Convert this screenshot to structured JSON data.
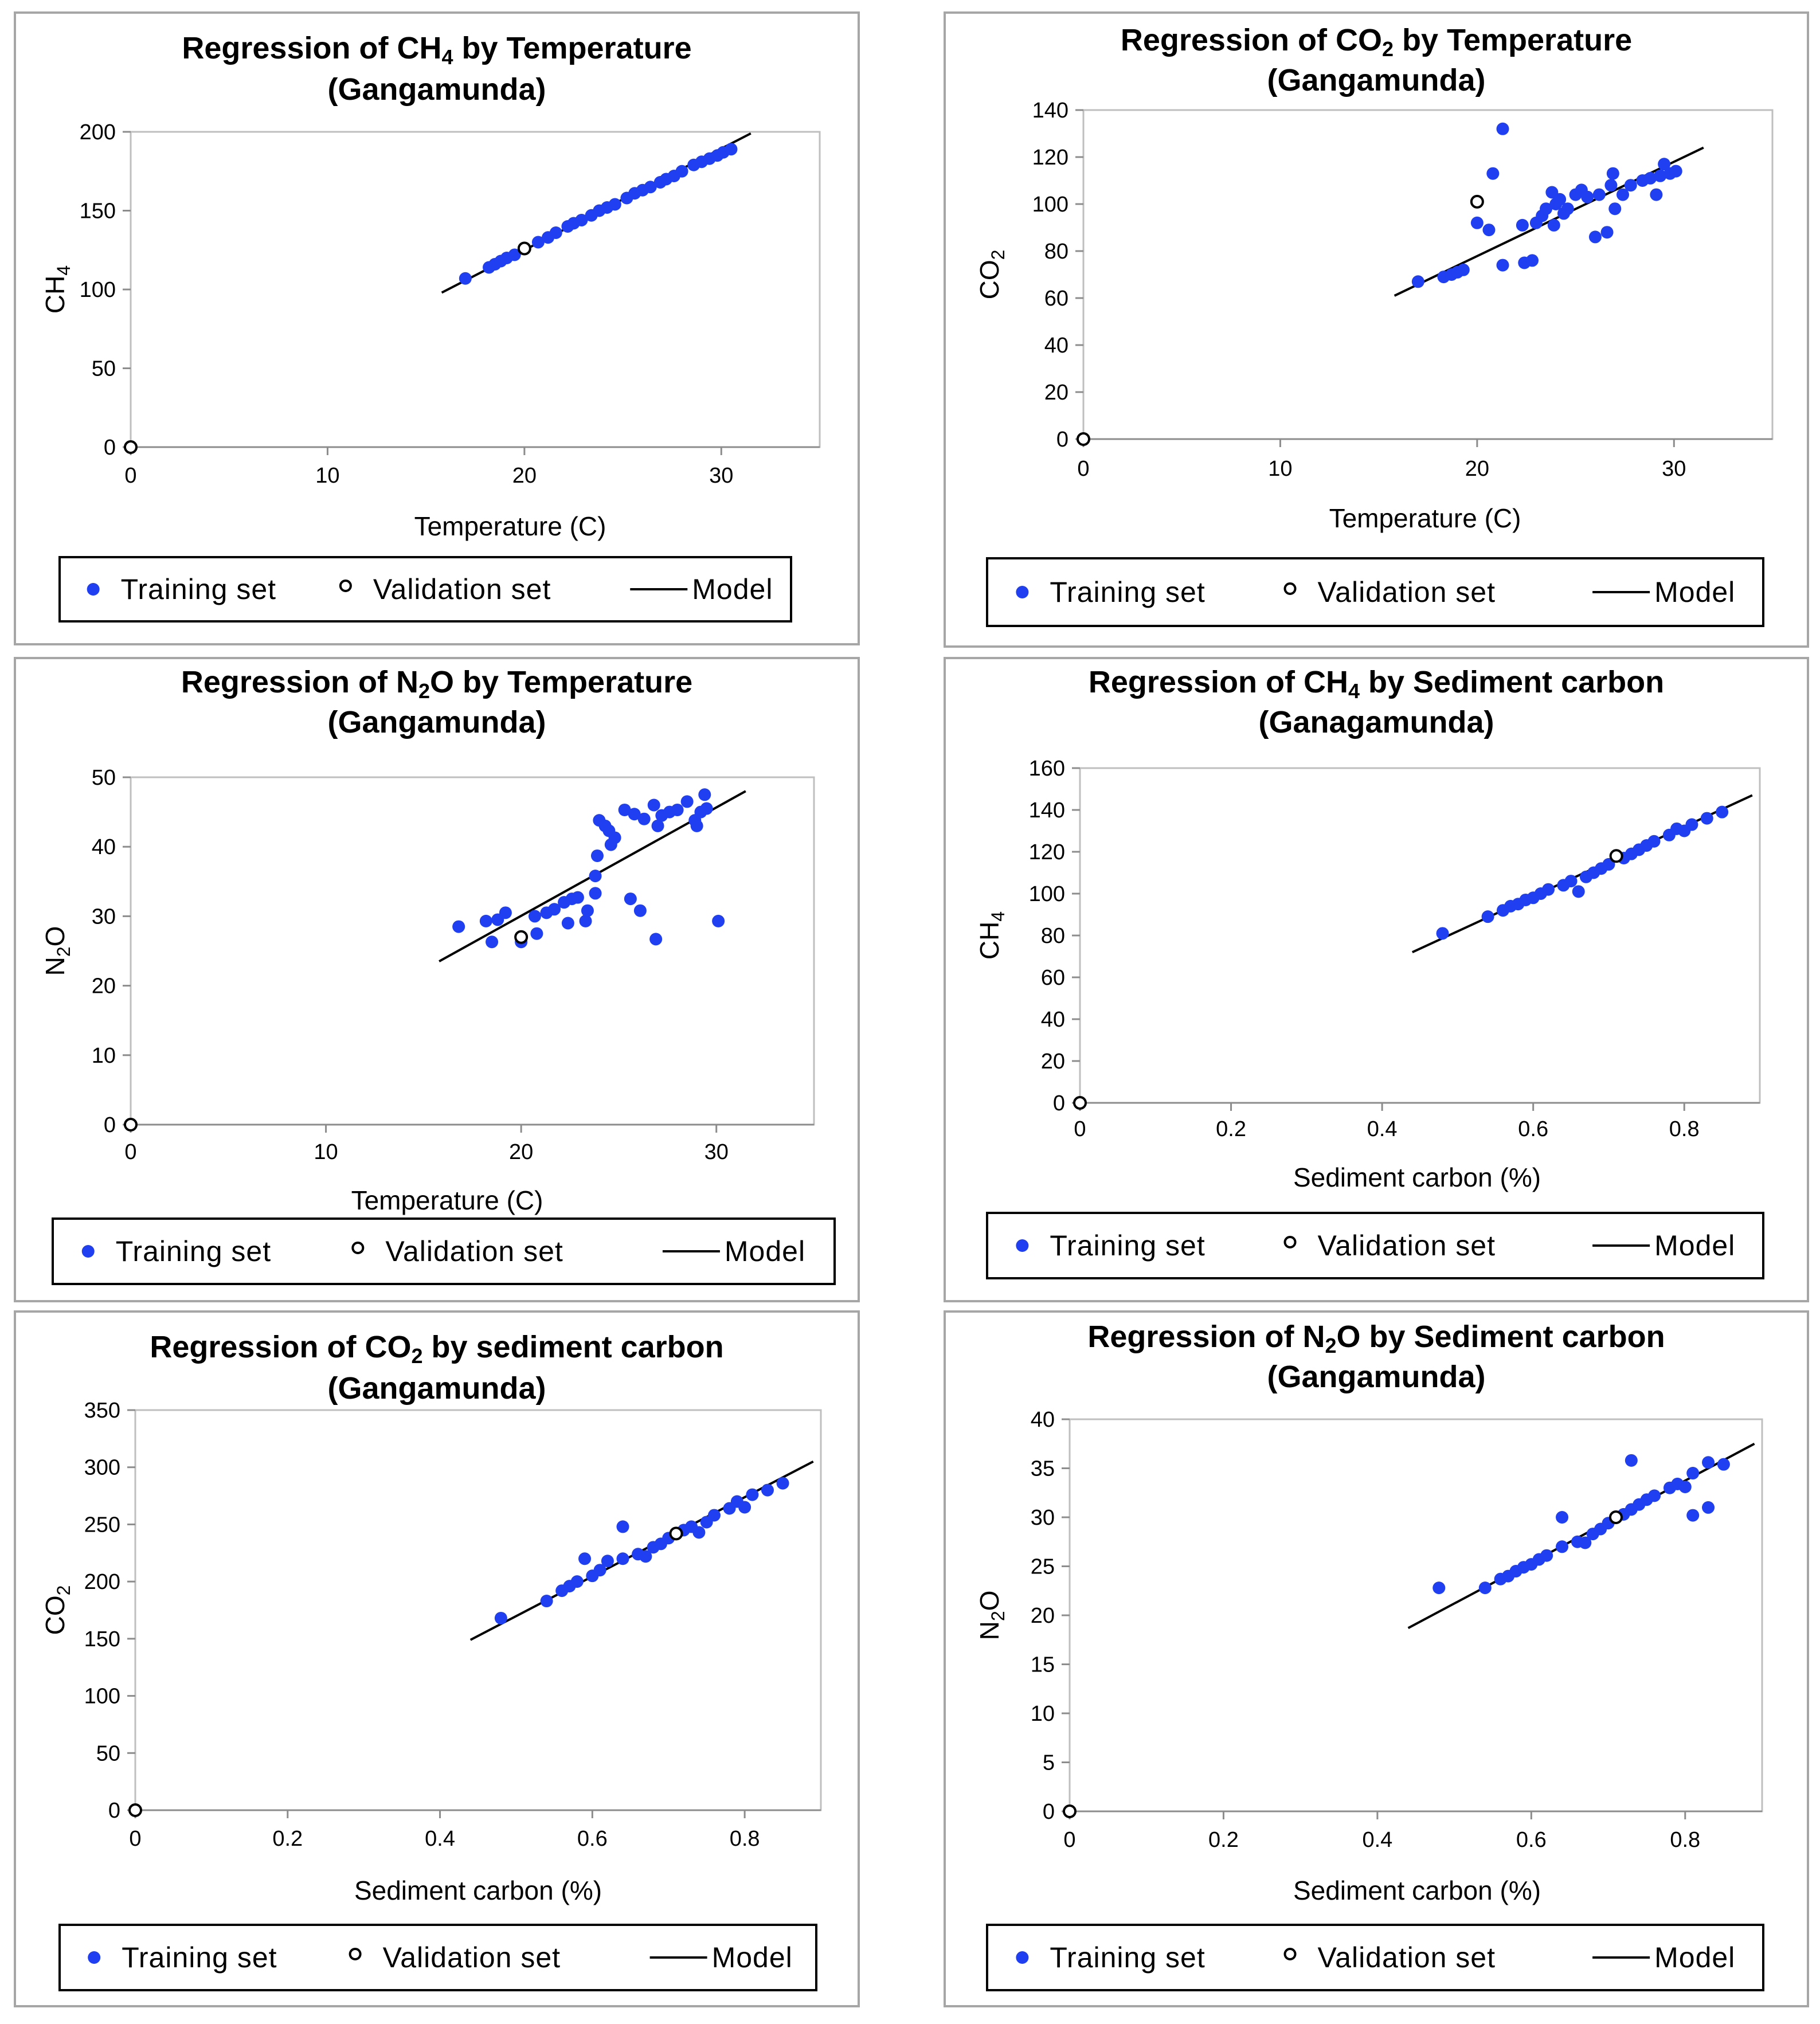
{
  "legend": {
    "training": "Training set",
    "validation": "Validation set",
    "model": "Model"
  },
  "colors": {
    "training": "#1f3ff0",
    "validation": "#ffffff",
    "model": "#000000",
    "frame": "#a6a6a6",
    "plot_border": "#bfbfbf"
  },
  "chart_data": [
    {
      "id": "ch4-temp",
      "type": "scatter",
      "title_parts": [
        "Regression of CH",
        "4",
        " by Temperature"
      ],
      "title_line2": "(Gangamunda)",
      "ylabel_parts": [
        "CH",
        "4"
      ],
      "xlabel": "Temperature (C)",
      "xlim": [
        0,
        35
      ],
      "ylim": [
        0,
        200
      ],
      "xticks": [
        0,
        10,
        20,
        30
      ],
      "yticks": [
        0,
        50,
        100,
        150,
        200
      ],
      "training": [
        [
          17,
          107
        ],
        [
          18.2,
          114
        ],
        [
          18.5,
          116
        ],
        [
          18.8,
          118
        ],
        [
          19.1,
          120
        ],
        [
          19.5,
          122
        ],
        [
          20.7,
          130
        ],
        [
          21.2,
          133
        ],
        [
          21.6,
          136
        ],
        [
          22.2,
          140
        ],
        [
          22.5,
          142
        ],
        [
          22.9,
          144
        ],
        [
          23.4,
          147
        ],
        [
          23.8,
          150
        ],
        [
          24.2,
          152
        ],
        [
          24.6,
          154
        ],
        [
          25.2,
          158
        ],
        [
          25.6,
          161
        ],
        [
          26,
          163
        ],
        [
          26.4,
          165
        ],
        [
          26.9,
          168
        ],
        [
          27.2,
          170
        ],
        [
          27.6,
          172
        ],
        [
          28,
          175
        ],
        [
          28.6,
          179
        ],
        [
          29,
          181
        ],
        [
          29.4,
          183
        ],
        [
          29.8,
          185
        ],
        [
          30.1,
          187
        ],
        [
          30.5,
          189
        ]
      ],
      "validation": [
        [
          0,
          0
        ],
        [
          20,
          126
        ]
      ],
      "model": [
        [
          15.8,
          98
        ],
        [
          31.5,
          199
        ]
      ]
    },
    {
      "id": "co2-temp",
      "type": "scatter",
      "title_parts": [
        "Regression of CO",
        "2",
        " by Temperature"
      ],
      "title_line2": "(Gangamunda)",
      "ylabel_parts": [
        "CO",
        "2"
      ],
      "xlabel": "Temperature (C)",
      "xlim": [
        0,
        35
      ],
      "ylim": [
        0,
        140
      ],
      "xticks": [
        0,
        10,
        20,
        30
      ],
      "yticks": [
        0,
        20,
        40,
        60,
        80,
        100,
        120,
        140
      ],
      "training": [
        [
          17,
          67
        ],
        [
          18.3,
          69
        ],
        [
          18.7,
          70
        ],
        [
          19,
          71
        ],
        [
          19.3,
          72
        ],
        [
          20,
          92
        ],
        [
          20.6,
          89
        ],
        [
          20.8,
          113
        ],
        [
          21.3,
          132
        ],
        [
          21.3,
          74
        ],
        [
          22.3,
          91
        ],
        [
          22.4,
          75
        ],
        [
          22.8,
          76
        ],
        [
          23,
          92
        ],
        [
          23.3,
          95
        ],
        [
          23.5,
          98
        ],
        [
          23.8,
          105
        ],
        [
          23.9,
          91
        ],
        [
          24,
          100
        ],
        [
          24.2,
          102
        ],
        [
          24.4,
          96
        ],
        [
          24.6,
          98
        ],
        [
          25,
          104
        ],
        [
          25.3,
          106
        ],
        [
          25.6,
          103
        ],
        [
          26,
          86
        ],
        [
          26.2,
          104
        ],
        [
          26.6,
          88
        ],
        [
          26.8,
          108
        ],
        [
          26.9,
          113
        ],
        [
          27,
          98
        ],
        [
          27.4,
          104
        ],
        [
          27.8,
          108
        ],
        [
          28.4,
          110
        ],
        [
          28.8,
          111
        ],
        [
          29.1,
          104
        ],
        [
          29.3,
          112
        ],
        [
          29.5,
          117
        ],
        [
          29.8,
          113
        ],
        [
          30.1,
          114
        ]
      ],
      "validation": [
        [
          0,
          0
        ],
        [
          20,
          101
        ]
      ],
      "model": [
        [
          15.8,
          61
        ],
        [
          31.5,
          124
        ]
      ]
    },
    {
      "id": "n2o-temp",
      "type": "scatter",
      "title_parts": [
        "Regression of N",
        "2",
        "O by Temperature"
      ],
      "title_line2": "(Gangamunda)",
      "ylabel_parts": [
        "N",
        "2",
        "O"
      ],
      "xlabel": "Temperature (C)",
      "xlim": [
        0,
        35
      ],
      "ylim": [
        0,
        50
      ],
      "xticks": [
        0,
        10,
        20,
        30
      ],
      "yticks": [
        0,
        10,
        20,
        30,
        40,
        50
      ],
      "training": [
        [
          16.8,
          28.5
        ],
        [
          18.2,
          29.3
        ],
        [
          18.5,
          26.3
        ],
        [
          18.8,
          29.5
        ],
        [
          19.2,
          30.5
        ],
        [
          20,
          26.3
        ],
        [
          20.7,
          30
        ],
        [
          20.8,
          27.5
        ],
        [
          21.3,
          30.5
        ],
        [
          21.7,
          31
        ],
        [
          22.2,
          32
        ],
        [
          22.4,
          29
        ],
        [
          22.6,
          32.5
        ],
        [
          22.9,
          32.7
        ],
        [
          23.3,
          29.3
        ],
        [
          23.4,
          30.8
        ],
        [
          23.8,
          33.3
        ],
        [
          23.8,
          35.8
        ],
        [
          23.9,
          38.7
        ],
        [
          24,
          43.8
        ],
        [
          24.3,
          43
        ],
        [
          24.5,
          42.3
        ],
        [
          24.6,
          40.3
        ],
        [
          24.8,
          41.3
        ],
        [
          25.3,
          45.3
        ],
        [
          25.6,
          32.5
        ],
        [
          25.8,
          44.7
        ],
        [
          26.1,
          30.8
        ],
        [
          26.3,
          44
        ],
        [
          26.8,
          46
        ],
        [
          26.9,
          26.7
        ],
        [
          27,
          43
        ],
        [
          27.2,
          44.5
        ],
        [
          27.6,
          45
        ],
        [
          28,
          45.3
        ],
        [
          28.5,
          46.5
        ],
        [
          28.9,
          43.8
        ],
        [
          29,
          43
        ],
        [
          29.2,
          45
        ],
        [
          29.4,
          47.5
        ],
        [
          29.5,
          45.5
        ],
        [
          30.1,
          29.3
        ]
      ],
      "validation": [
        [
          0,
          0
        ],
        [
          20,
          27
        ]
      ],
      "model": [
        [
          15.8,
          23.5
        ],
        [
          31.5,
          48
        ]
      ]
    },
    {
      "id": "ch4-sed",
      "type": "scatter",
      "title_parts": [
        "Regression of CH",
        "4",
        " by Sediment carbon"
      ],
      "title_line2": "(Ganagamunda)",
      "ylabel_parts": [
        "CH",
        "4"
      ],
      "xlabel": "Sediment carbon (%)",
      "xlim": [
        0,
        0.9
      ],
      "ylim": [
        0,
        160
      ],
      "xticks": [
        0,
        0.2,
        0.4,
        0.6,
        0.8
      ],
      "yticks": [
        0,
        20,
        40,
        60,
        80,
        100,
        120,
        140,
        160
      ],
      "training": [
        [
          0.48,
          81
        ],
        [
          0.54,
          89
        ],
        [
          0.56,
          92
        ],
        [
          0.57,
          94
        ],
        [
          0.58,
          95
        ],
        [
          0.59,
          97
        ],
        [
          0.6,
          98
        ],
        [
          0.61,
          100
        ],
        [
          0.62,
          102
        ],
        [
          0.64,
          104
        ],
        [
          0.65,
          106
        ],
        [
          0.66,
          101
        ],
        [
          0.67,
          108
        ],
        [
          0.68,
          110
        ],
        [
          0.69,
          112
        ],
        [
          0.7,
          114
        ],
        [
          0.72,
          117
        ],
        [
          0.73,
          119
        ],
        [
          0.74,
          121
        ],
        [
          0.75,
          123
        ],
        [
          0.76,
          125
        ],
        [
          0.78,
          128
        ],
        [
          0.79,
          131
        ],
        [
          0.8,
          130
        ],
        [
          0.81,
          133
        ],
        [
          0.83,
          136
        ],
        [
          0.85,
          139
        ]
      ],
      "validation": [
        [
          0,
          0
        ],
        [
          0.71,
          118
        ]
      ],
      "model": [
        [
          0.44,
          72
        ],
        [
          0.89,
          147
        ]
      ]
    },
    {
      "id": "co2-sed",
      "type": "scatter",
      "title_parts": [
        "Regression of CO",
        "2",
        " by sediment carbon"
      ],
      "title_line2": "(Gangamunda)",
      "ylabel_parts": [
        "CO",
        "2"
      ],
      "xlabel": "Sediment carbon (%)",
      "xlim": [
        0,
        0.9
      ],
      "ylim": [
        0,
        350
      ],
      "xticks": [
        0,
        0.2,
        0.4,
        0.6,
        0.8
      ],
      "yticks": [
        0,
        50,
        100,
        150,
        200,
        250,
        300,
        350
      ],
      "training": [
        [
          0.48,
          168
        ],
        [
          0.54,
          183
        ],
        [
          0.56,
          192
        ],
        [
          0.57,
          196
        ],
        [
          0.58,
          200
        ],
        [
          0.59,
          220
        ],
        [
          0.6,
          205
        ],
        [
          0.61,
          210
        ],
        [
          0.62,
          218
        ],
        [
          0.64,
          248
        ],
        [
          0.64,
          220
        ],
        [
          0.66,
          224
        ],
        [
          0.67,
          222
        ],
        [
          0.68,
          230
        ],
        [
          0.69,
          233
        ],
        [
          0.7,
          238
        ],
        [
          0.72,
          245
        ],
        [
          0.73,
          248
        ],
        [
          0.74,
          243
        ],
        [
          0.75,
          252
        ],
        [
          0.76,
          258
        ],
        [
          0.78,
          264
        ],
        [
          0.79,
          270
        ],
        [
          0.8,
          265
        ],
        [
          0.81,
          276
        ],
        [
          0.83,
          280
        ],
        [
          0.85,
          286
        ]
      ],
      "validation": [
        [
          0,
          0
        ],
        [
          0.71,
          242
        ]
      ],
      "model": [
        [
          0.44,
          149
        ],
        [
          0.89,
          305
        ]
      ]
    },
    {
      "id": "n2o-sed",
      "type": "scatter",
      "title_parts": [
        "Regression of N",
        "2",
        "O by Sediment carbon"
      ],
      "title_line2": "(Gangamunda)",
      "ylabel_parts": [
        "N",
        "2",
        "O"
      ],
      "xlabel": "Sediment carbon (%)",
      "xlim": [
        0,
        0.9
      ],
      "ylim": [
        0,
        40
      ],
      "xticks": [
        0,
        0.2,
        0.4,
        0.6,
        0.8
      ],
      "yticks": [
        0,
        5,
        10,
        15,
        20,
        25,
        30,
        35,
        40
      ],
      "training": [
        [
          0.48,
          22.8
        ],
        [
          0.54,
          22.8
        ],
        [
          0.56,
          23.7
        ],
        [
          0.57,
          24
        ],
        [
          0.58,
          24.5
        ],
        [
          0.59,
          24.9
        ],
        [
          0.6,
          25.2
        ],
        [
          0.61,
          25.7
        ],
        [
          0.62,
          26.1
        ],
        [
          0.64,
          27
        ],
        [
          0.64,
          30
        ],
        [
          0.66,
          27.5
        ],
        [
          0.67,
          27.4
        ],
        [
          0.68,
          28.3
        ],
        [
          0.69,
          28.8
        ],
        [
          0.7,
          29.4
        ],
        [
          0.72,
          30.3
        ],
        [
          0.73,
          35.8
        ],
        [
          0.73,
          30.8
        ],
        [
          0.74,
          31.3
        ],
        [
          0.75,
          31.8
        ],
        [
          0.76,
          32.2
        ],
        [
          0.78,
          33
        ],
        [
          0.79,
          33.4
        ],
        [
          0.8,
          33.1
        ],
        [
          0.81,
          34.5
        ],
        [
          0.81,
          30.2
        ],
        [
          0.83,
          35.6
        ],
        [
          0.83,
          31
        ],
        [
          0.85,
          35.4
        ]
      ],
      "validation": [
        [
          0,
          0
        ],
        [
          0.71,
          30
        ]
      ],
      "model": [
        [
          0.44,
          18.7
        ],
        [
          0.89,
          37.5
        ]
      ]
    }
  ]
}
